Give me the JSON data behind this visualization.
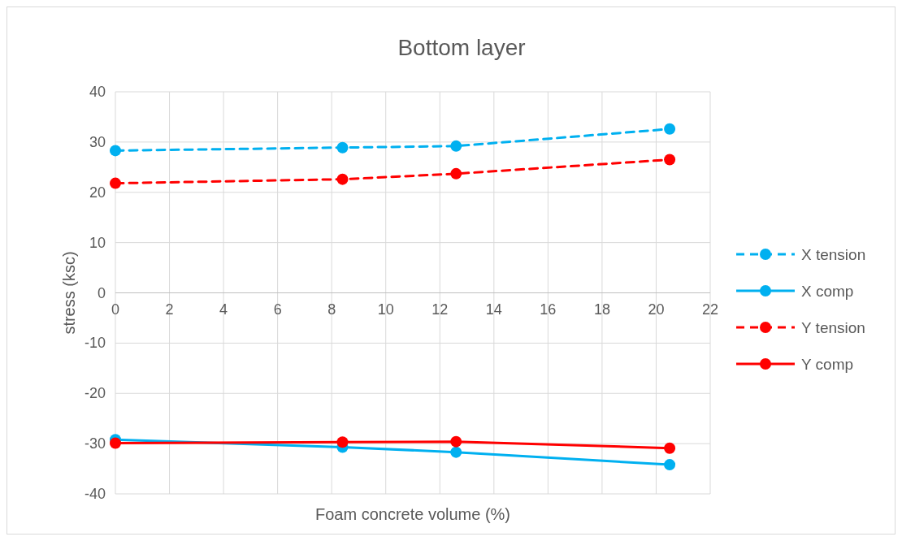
{
  "chart_data": {
    "type": "line",
    "title": "Bottom layer",
    "xlabel": "Foam concrete volume (%)",
    "ylabel": "stress (ksc)",
    "x": [
      0,
      8.4,
      12.6,
      20.5
    ],
    "xlim": [
      0,
      22
    ],
    "xticks": [
      0,
      2,
      4,
      6,
      8,
      10,
      12,
      14,
      16,
      18,
      20,
      22
    ],
    "ylim": [
      -40,
      40
    ],
    "yticks": [
      -40,
      -30,
      -20,
      -10,
      0,
      10,
      20,
      30,
      40
    ],
    "grid": true,
    "legend": "right",
    "marker": "circle",
    "series": [
      {
        "name": "X tension",
        "color": "#00b0f0",
        "line_style": "dashed",
        "values": [
          28.3,
          28.9,
          29.2,
          32.6
        ]
      },
      {
        "name": "X comp",
        "color": "#00b0f0",
        "line_style": "solid",
        "values": [
          -29.2,
          -30.7,
          -31.7,
          -34.2
        ]
      },
      {
        "name": "Y tension",
        "color": "#ff0000",
        "line_style": "dashed",
        "values": [
          21.8,
          22.6,
          23.7,
          26.5
        ]
      },
      {
        "name": "Y comp",
        "color": "#ff0000",
        "line_style": "solid",
        "values": [
          -29.9,
          -29.7,
          -29.6,
          -30.9
        ]
      }
    ]
  }
}
